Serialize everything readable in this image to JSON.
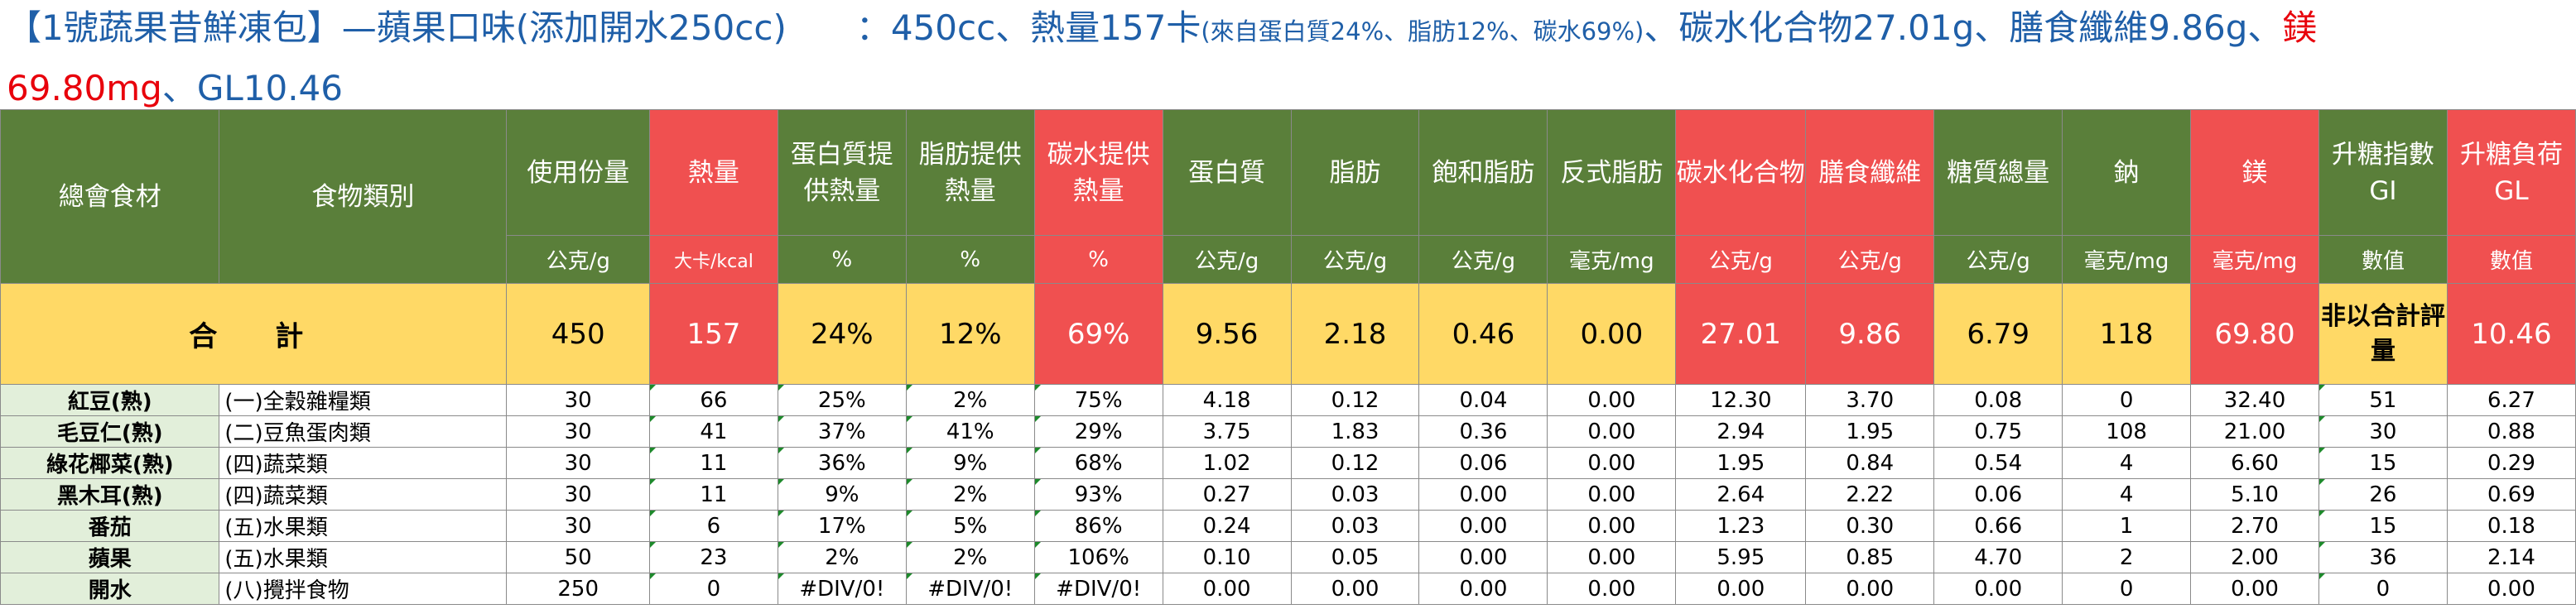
{
  "title": {
    "part1": "【1號蔬果昔鮮凍包】—蘋果口味(添加開水250cc)　　：450cc、熱量157卡",
    "part2": "(來自蛋白質24%、脂肪12%、碳水69%)",
    "part3": "、碳水化合物27.01g、膳食纖維9.86g、",
    "part4": "鎂",
    "part5": "69.80mg",
    "part6": "、GL10.46"
  },
  "headers": [
    "總會食材",
    "食物類別",
    "使用份量",
    "熱量",
    "蛋白質提供熱量",
    "脂肪提供熱量",
    "碳水提供熱量",
    "蛋白質",
    "脂肪",
    "飽和脂肪",
    "反式脂肪",
    "碳水化合物",
    "膳食纖維",
    "糖質總量",
    "鈉",
    "鎂",
    "升糖指數GI",
    "升糖負荷GL"
  ],
  "units": [
    "公克/g",
    "大卡/kcal",
    "%",
    "%",
    "%",
    "公克/g",
    "公克/g",
    "公克/g",
    "毫克/mg",
    "公克/g",
    "公克/g",
    "公克/g",
    "毫克/mg",
    "毫克/mg",
    "數值",
    "數值"
  ],
  "total": {
    "label": "合　計",
    "values": [
      "450",
      "157",
      "24%",
      "12%",
      "69%",
      "9.56",
      "2.18",
      "0.46",
      "0.00",
      "27.01",
      "9.86",
      "6.79",
      "118",
      "69.80",
      "非以合計評量",
      "10.46"
    ]
  },
  "rows": [
    {
      "food": "紅豆(熟)",
      "category": "(一)全穀雜糧類",
      "values": [
        "30",
        "66",
        "25%",
        "2%",
        "75%",
        "4.18",
        "0.12",
        "0.04",
        "0.00",
        "12.30",
        "3.70",
        "0.08",
        "0",
        "32.40",
        "51",
        "6.27"
      ]
    },
    {
      "food": "毛豆仁(熟)",
      "category": "(二)豆魚蛋肉類",
      "values": [
        "30",
        "41",
        "37%",
        "41%",
        "29%",
        "3.75",
        "1.83",
        "0.36",
        "0.00",
        "2.94",
        "1.95",
        "0.75",
        "108",
        "21.00",
        "30",
        "0.88"
      ]
    },
    {
      "food": "綠花椰菜(熟)",
      "category": "(四)蔬菜類",
      "values": [
        "30",
        "11",
        "36%",
        "9%",
        "68%",
        "1.02",
        "0.12",
        "0.06",
        "0.00",
        "1.95",
        "0.84",
        "0.54",
        "4",
        "6.60",
        "15",
        "0.29"
      ]
    },
    {
      "food": "黑木耳(熟)",
      "category": "(四)蔬菜類",
      "values": [
        "30",
        "11",
        "9%",
        "2%",
        "93%",
        "0.27",
        "0.03",
        "0.00",
        "0.00",
        "2.64",
        "2.22",
        "0.06",
        "4",
        "5.10",
        "26",
        "0.69"
      ]
    },
    {
      "food": "番茄",
      "category": "(五)水果類",
      "values": [
        "30",
        "6",
        "17%",
        "5%",
        "86%",
        "0.24",
        "0.03",
        "0.00",
        "0.00",
        "1.23",
        "0.30",
        "0.66",
        "1",
        "2.70",
        "15",
        "0.18"
      ]
    },
    {
      "food": "蘋果",
      "category": "(五)水果類",
      "values": [
        "50",
        "23",
        "2%",
        "2%",
        "106%",
        "0.10",
        "0.05",
        "0.00",
        "0.00",
        "5.95",
        "0.85",
        "4.70",
        "2",
        "2.00",
        "36",
        "2.14"
      ]
    },
    {
      "food": "開水",
      "category": "(八)攪拌食物",
      "values": [
        "250",
        "0",
        "#DIV/0!",
        "#DIV/0!",
        "#DIV/0!",
        "0.00",
        "0.00",
        "0.00",
        "0.00",
        "0.00",
        "0.00",
        "0.00",
        "0",
        "0.00",
        "0",
        "0.00"
      ]
    }
  ],
  "colors": {
    "header_green": "#5a7f3a",
    "header_red": "#f05050",
    "total_yellow": "#ffd966",
    "food_col": "#e2efda",
    "title_blue": "#1f5fa8",
    "title_red": "#e8000b"
  }
}
